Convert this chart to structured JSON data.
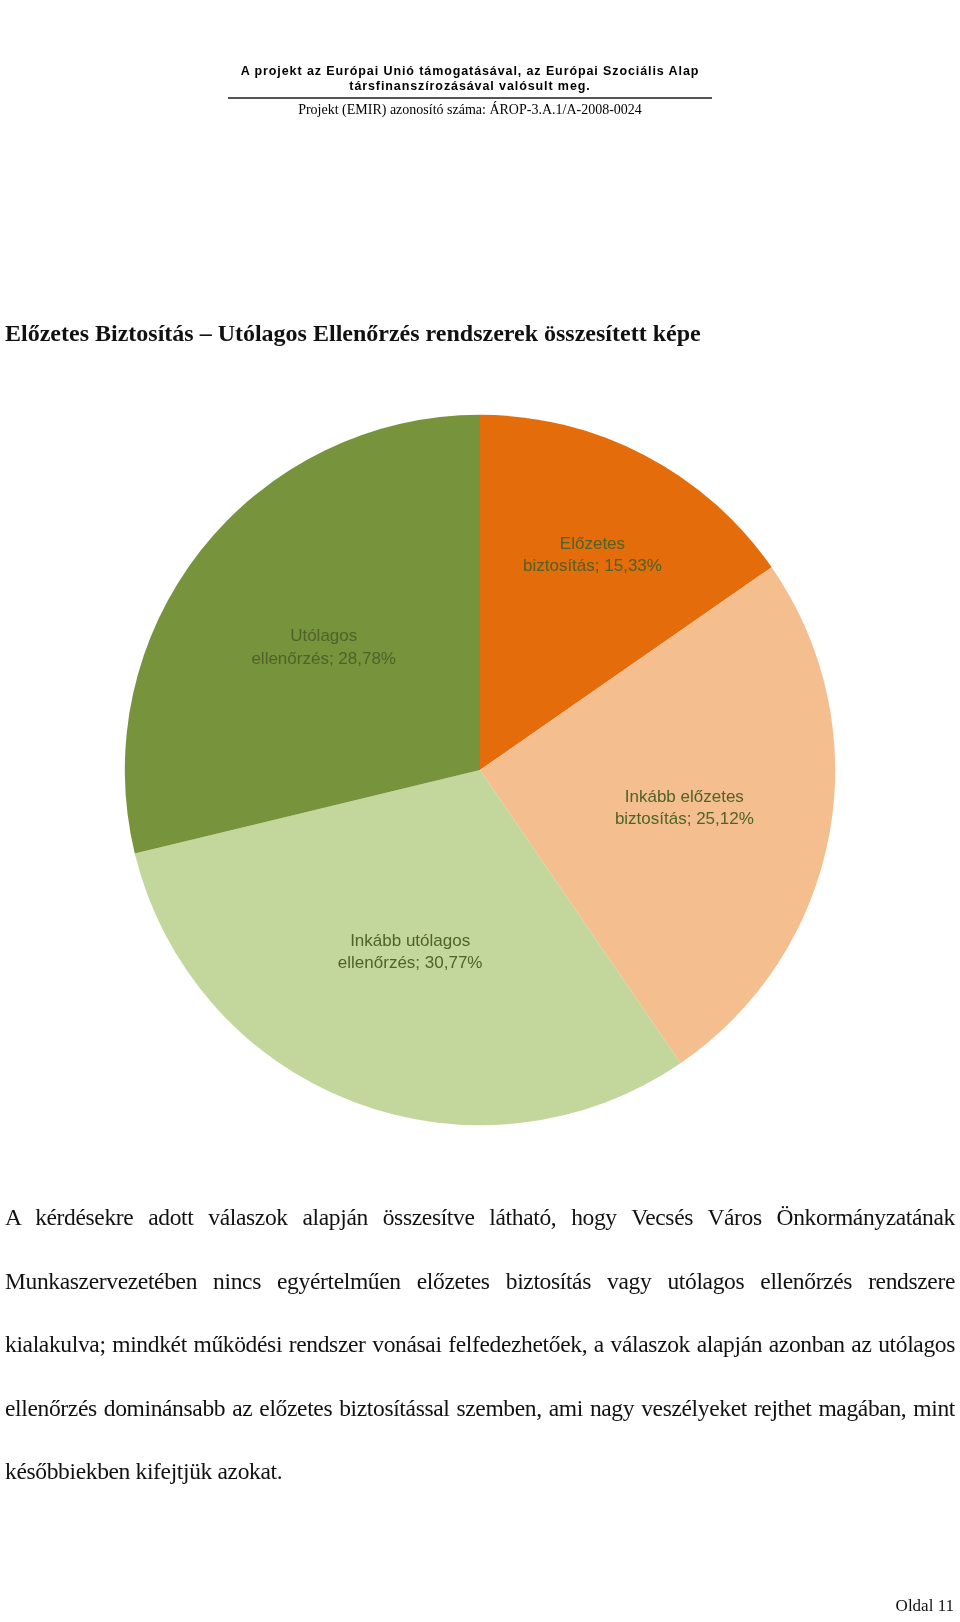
{
  "chart_data": {
    "type": "pie",
    "title": "Előzetes Biztosítás – Utólagos Ellenőrzés rendszerek összesített képe",
    "categories": [
      "Előzetes biztosítás",
      "Inkább előzetes biztosítás",
      "Inkább utólagos ellenőrzés",
      "Utólagos ellenőrzés"
    ],
    "values": [
      15.33,
      25.12,
      30.77,
      28.78
    ],
    "colors": [
      "#e46c0a",
      "#f5be8f",
      "#c3d69b",
      "#77933c"
    ],
    "value_labels": [
      "15,33%",
      "25,12%",
      "30,77%",
      "28,78%"
    ],
    "legend": false,
    "annotations": [
      "A projekt az Európai Unió támogatásával, az Európai Szociális Alap társfinanszírozásával valósult meg.",
      "Projekt (EMIR) azonosító száma: ÁROP-3.A.1/A-2008-0024",
      "A kérdésekre adott válaszok alapján összesítve látható, hogy Vecsés Város Önkormányzatának Munkaszervezetében nincs egyértelműen előzetes biztosítás vagy utólagos ellenőrzés rendszere kialakulva; mindkét működési rendszer vonásai felfedezhetőek, a válaszok alapján azonban az utólagos ellenőrzés dominánsabb az előzetes biztosítással szemben, ami nagy veszélyeket rejthet magában, mint későbbiekben kifejtjük azokat.",
      "Oldal 11"
    ]
  }
}
